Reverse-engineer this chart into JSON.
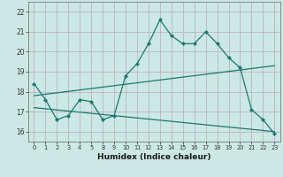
{
  "xlabel": "Humidex (Indice chaleur)",
  "bg_color": "#cce8e4",
  "grid_color": "#b8a8b8",
  "line_color": "#1a7870",
  "x_labels": [
    "0",
    "1",
    "2",
    "3",
    "4",
    "5",
    "8",
    "9",
    "10",
    "11",
    "12",
    "13",
    "14",
    "15",
    "16",
    "17",
    "18",
    "19",
    "20",
    "21",
    "22",
    "23"
  ],
  "ylim": [
    15.5,
    22.5
  ],
  "yticks": [
    16,
    17,
    18,
    19,
    20,
    21,
    22
  ],
  "series1_y": [
    18.4,
    17.6,
    16.6,
    16.8,
    17.6,
    17.5,
    16.6,
    16.8,
    18.8,
    19.4,
    20.4,
    21.6,
    20.8,
    20.4,
    20.4,
    21.0,
    20.4,
    19.7,
    19.2,
    17.1,
    16.6,
    15.9
  ],
  "series2_indices": [
    0,
    21
  ],
  "series2_y": [
    17.8,
    19.3
  ],
  "series3_indices": [
    0,
    21
  ],
  "series3_y": [
    17.2,
    16.0
  ]
}
